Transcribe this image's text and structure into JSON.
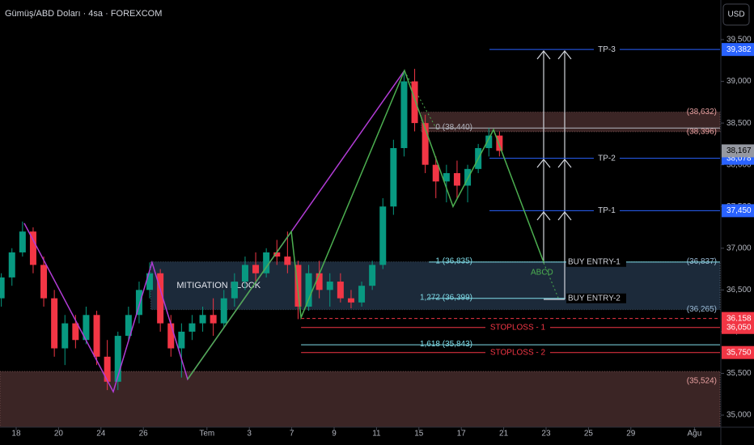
{
  "chart_data": {
    "type": "candlestick",
    "title": "Gümüş/ABD Doları · 4sa · FOREXCOM",
    "currency": "USD",
    "xlim": [
      -0.763,
      33.206
    ],
    "ylim": [
      34855,
      39975
    ],
    "xticks": [
      {
        "value": 0,
        "label": "18"
      },
      {
        "value": 2,
        "label": "20"
      },
      {
        "value": 4,
        "label": "24"
      },
      {
        "value": 6,
        "label": "26"
      },
      {
        "value": 9,
        "label": "Tem"
      },
      {
        "value": 11,
        "label": "3"
      },
      {
        "value": 13,
        "label": "7"
      },
      {
        "value": 15,
        "label": "9"
      },
      {
        "value": 17,
        "label": "11"
      },
      {
        "value": 19,
        "label": "15"
      },
      {
        "value": 21,
        "label": "17"
      },
      {
        "value": 23,
        "label": "21"
      },
      {
        "value": 25,
        "label": "23"
      },
      {
        "value": 27,
        "label": "25"
      },
      {
        "value": 29,
        "label": "29"
      },
      {
        "value": 32,
        "label": "Ağu"
      }
    ],
    "yticks": [
      {
        "value": 35000,
        "label": "35,000"
      },
      {
        "value": 35500,
        "label": "35,500"
      },
      {
        "value": 36000,
        "label": "36,000"
      },
      {
        "value": 36500,
        "label": "36,500"
      },
      {
        "value": 37000,
        "label": "37,000"
      },
      {
        "value": 37500,
        "label": "37,500"
      },
      {
        "value": 38000,
        "label": "38,000"
      },
      {
        "value": 38500,
        "label": "38,500"
      },
      {
        "value": 39000,
        "label": "39,000"
      },
      {
        "value": 39500,
        "label": "39,500"
      }
    ],
    "up_color": "#089981",
    "down_color": "#f23645",
    "grid": false,
    "candles": [
      [
        -0.7,
        36400,
        36700,
        36300,
        36650
      ],
      [
        -0.2,
        36650,
        37000,
        36550,
        36950
      ],
      [
        0.3,
        36950,
        37320,
        36900,
        37200
      ],
      [
        0.8,
        37200,
        37250,
        36700,
        36800
      ],
      [
        1.3,
        36800,
        36900,
        36300,
        36400
      ],
      [
        1.8,
        36400,
        36500,
        35700,
        35800
      ],
      [
        2.3,
        35800,
        36200,
        35600,
        36100
      ],
      [
        2.8,
        36100,
        36200,
        35800,
        35900
      ],
      [
        3.3,
        35900,
        36300,
        35850,
        36200
      ],
      [
        3.8,
        36200,
        36250,
        35600,
        35700
      ],
      [
        4.3,
        35700,
        35900,
        35300,
        35400
      ],
      [
        4.8,
        35400,
        36000,
        35300,
        35950
      ],
      [
        5.3,
        35950,
        36300,
        35900,
        36200
      ],
      [
        5.8,
        36200,
        36600,
        36100,
        36500
      ],
      [
        6.3,
        36500,
        36830,
        36400,
        36700
      ],
      [
        6.8,
        36700,
        36750,
        36000,
        36100
      ],
      [
        7.3,
        36100,
        36200,
        35700,
        35800
      ],
      [
        7.8,
        35800,
        36100,
        35450,
        36000
      ],
      [
        8.3,
        36000,
        36200,
        35900,
        36100
      ],
      [
        8.8,
        36100,
        36300,
        36000,
        36200
      ],
      [
        9.3,
        36200,
        36400,
        35950,
        36100
      ],
      [
        9.8,
        36100,
        36500,
        36050,
        36400
      ],
      [
        10.3,
        36400,
        36700,
        36300,
        36600
      ],
      [
        10.8,
        36600,
        36900,
        36500,
        36800
      ],
      [
        11.3,
        36800,
        36950,
        36600,
        36700
      ],
      [
        11.8,
        36700,
        37000,
        36650,
        36950
      ],
      [
        12.3,
        36950,
        37100,
        36800,
        36900
      ],
      [
        12.8,
        36900,
        37200,
        36700,
        36800
      ],
      [
        13.3,
        36800,
        36850,
        36150,
        36300
      ],
      [
        13.8,
        36300,
        36800,
        36250,
        36700
      ],
      [
        14.3,
        36700,
        36850,
        36400,
        36500
      ],
      [
        14.8,
        36500,
        36700,
        36300,
        36600
      ],
      [
        15.3,
        36600,
        36700,
        36350,
        36400
      ],
      [
        15.8,
        36400,
        36500,
        36280,
        36350
      ],
      [
        16.3,
        36350,
        36600,
        36300,
        36550
      ],
      [
        16.8,
        36550,
        36850,
        36500,
        36800
      ],
      [
        17.3,
        36800,
        37600,
        36750,
        37500
      ],
      [
        17.8,
        37500,
        38300,
        37400,
        38200
      ],
      [
        18.3,
        38200,
        39100,
        38100,
        39000
      ],
      [
        18.8,
        39000,
        39150,
        38400,
        38500
      ],
      [
        19.3,
        38500,
        38600,
        37900,
        38000
      ],
      [
        19.8,
        38000,
        38100,
        37600,
        37800
      ],
      [
        20.3,
        37800,
        38000,
        37550,
        37900
      ],
      [
        20.8,
        37900,
        38050,
        37600,
        37750
      ],
      [
        21.3,
        37750,
        38000,
        37550,
        37950
      ],
      [
        21.8,
        37950,
        38250,
        37900,
        38200
      ],
      [
        22.3,
        38200,
        38440,
        38100,
        38350
      ],
      [
        22.8,
        38350,
        38400,
        38100,
        38167
      ]
    ],
    "last_price": 38167,
    "last_label": "38,167",
    "zones": [
      {
        "from": 19.1,
        "top": 38632,
        "bottom": 38396,
        "color": "#3b2525",
        "top_label": "(38,632)",
        "bottom_label": "(38,396)",
        "label_color": "#e8a0a0"
      },
      {
        "from": 6.35,
        "top": 36837,
        "bottom": 36265,
        "color": "#1c2a3a",
        "label": "MITIGATION BLOCK",
        "top_label": "(36,837)",
        "bottom_label": "(36,265)",
        "label_color": "#9bbbd6"
      },
      {
        "from": -0.763,
        "top": 35524,
        "color": "#3b2525",
        "top_label": "(35,524)",
        "label_color": "#e8a0a0"
      }
    ],
    "levels": [
      {
        "value": 39382,
        "from": 22.33,
        "color": "#2962ff",
        "label": "TP-3",
        "tag": "39,382"
      },
      {
        "value": 38078,
        "from": 22.33,
        "color": "#2962ff",
        "label": "TP-2",
        "tag": "38,078"
      },
      {
        "value": 37450,
        "from": 22.33,
        "color": "#2962ff",
        "label": "TP-1",
        "tag": "37,450"
      },
      {
        "value": 38440,
        "from": 19.47,
        "color": "#b2b5be",
        "fib": "0 (38,440)"
      },
      {
        "value": 36835,
        "from": 19.47,
        "color": "#80deea",
        "fib": "1 (36,835)",
        "label": "BUY ENTRY-1"
      },
      {
        "value": 36399,
        "from": 19.47,
        "to": 25.88,
        "color": "#80deea",
        "fib": "1,272 (36,399)",
        "label": "BUY ENTRY-2"
      },
      {
        "value": 36158,
        "from": 13.44,
        "color": "#f23645",
        "dashed": true,
        "tag": "36,158"
      },
      {
        "value": 36050,
        "from": 13.44,
        "color": "#f23645",
        "label": "STOPLOSS - 1",
        "tag": "36,050"
      },
      {
        "value": 35843,
        "from": 13.44,
        "color": "#80deea",
        "fib": "1,618 (35,843)"
      },
      {
        "value": 35750,
        "from": 13.44,
        "color": "#f23645",
        "label": "STOPLOSS - 2",
        "tag": "35,750"
      }
    ],
    "series": [
      {
        "color": "#b23cd6",
        "x": [
          0.38,
          4.58,
          6.41,
          8.09,
          18.32
        ],
        "values": [
          37300,
          35280,
          36830,
          35430,
          39130
        ]
      },
      {
        "color": "#4caf50",
        "x": [
          8.09,
          12.98,
          13.44,
          18.32,
          20.61,
          22.52,
          24.89
        ],
        "values": [
          35430,
          37200,
          36170,
          39130,
          37500,
          38420,
          36830
        ]
      }
    ],
    "annotation": "ABCD"
  }
}
